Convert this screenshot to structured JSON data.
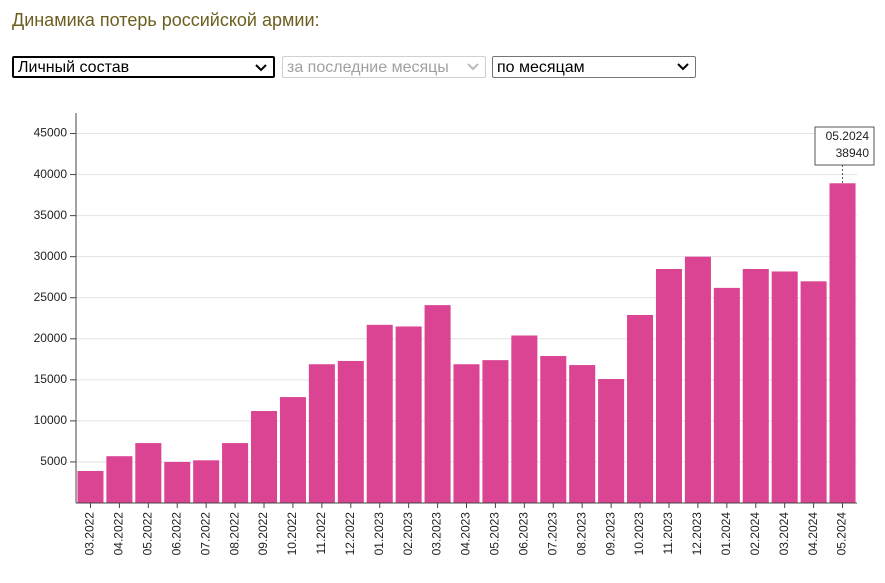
{
  "chart_data": {
    "type": "bar",
    "title": "Динамика потерь российской армии:",
    "categories": [
      "03.2022",
      "04.2022",
      "05.2022",
      "06.2022",
      "07.2022",
      "08.2022",
      "09.2022",
      "10.2022",
      "11.2022",
      "12.2022",
      "01.2023",
      "02.2023",
      "03.2023",
      "04.2023",
      "05.2023",
      "06.2023",
      "07.2023",
      "08.2023",
      "09.2023",
      "10.2023",
      "11.2023",
      "12.2023",
      "01.2024",
      "02.2024",
      "03.2024",
      "04.2024",
      "05.2024"
    ],
    "values": [
      3900,
      5700,
      7300,
      5000,
      5200,
      7300,
      11200,
      12900,
      16900,
      17300,
      21700,
      21500,
      24100,
      16900,
      17400,
      20400,
      17900,
      16800,
      15100,
      22900,
      28500,
      30000,
      26200,
      28500,
      28200,
      27000,
      38940
    ],
    "color": "#db4492",
    "ylim": [
      0,
      47500
    ],
    "yticks": [
      5000,
      10000,
      15000,
      20000,
      25000,
      30000,
      35000,
      40000,
      45000
    ],
    "grid": true
  },
  "controls": [
    "Личный состав",
    "за последние месяцы",
    "по месяцам"
  ]
}
